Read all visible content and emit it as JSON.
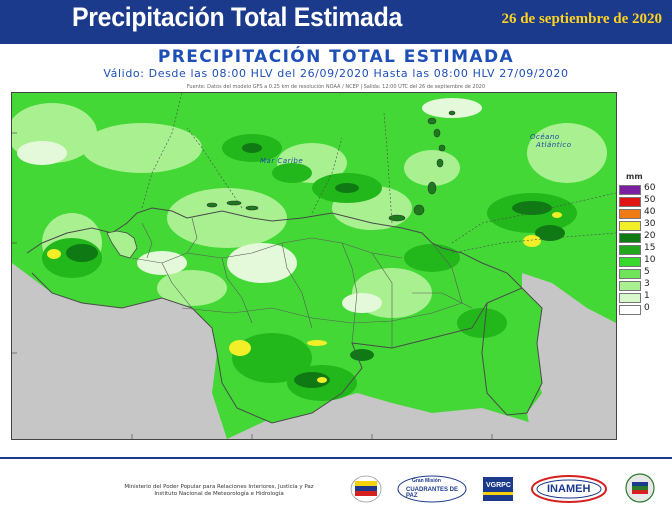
{
  "header": {
    "title": "Precipitación Total Estimada",
    "date": "26 de septiembre de 2020"
  },
  "map": {
    "title": "PRECIPITACIÓN TOTAL ESTIMADA",
    "valid": "Válido: Desde las 08:00 HLV del 26/09/2020 Hasta las 08:00 HLV 27/09/2020",
    "source": "Fuente: Datos del modelo GFS a 0.25 km de resolución NOAA / NCEP | Salida: 12:00 UTC del 26 de septiembre de 2020",
    "labels": {
      "sea": "Mar Caribe",
      "ocean_line1": "Océano",
      "ocean_line2": "Atlántico"
    },
    "colors": {
      "very_light": "#d8f7cc",
      "light": "#90ec78",
      "green": "#37d92c",
      "medium": "#22b81c",
      "dark": "#0f7a14",
      "yellow": "#f2ef28",
      "border": "#4a4a4a",
      "land_outside": "#c6c6c6"
    }
  },
  "legend": {
    "unit": "mm",
    "items": [
      {
        "value": "60",
        "color": "#7a1fa0"
      },
      {
        "value": "50",
        "color": "#e01414"
      },
      {
        "value": "40",
        "color": "#f07a14"
      },
      {
        "value": "30",
        "color": "#f2ef28"
      },
      {
        "value": "20",
        "color": "#0f7a14"
      },
      {
        "value": "15",
        "color": "#22a61c"
      },
      {
        "value": "10",
        "color": "#37d92c"
      },
      {
        "value": "5",
        "color": "#6fe45a"
      },
      {
        "value": "3",
        "color": "#a8f090"
      },
      {
        "value": "1",
        "color": "#d8f7cc"
      },
      {
        "value": "0",
        "color": "#ffffff"
      }
    ]
  },
  "footer": {
    "ministry_line1": "Ministerio del Poder Popular para Relaciones Interiores, Justicia y Paz",
    "ministry_line2": "Instituto Nacional de Meteorología e Hidrología",
    "logos": {
      "cuadrantes_top": "Gran Misión",
      "cuadrantes_bottom": "CUADRANTES DE PAZ",
      "vgrpc": "VGRPC",
      "inameh": "INAMEH"
    }
  }
}
